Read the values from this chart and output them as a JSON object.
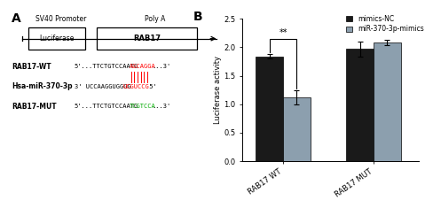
{
  "panel_A": {
    "label": "A",
    "sv40_label": "SV40 Promoter",
    "polya_label": "Poly A",
    "luciferase_label": "Luciferase",
    "rab17_label": "RAB17",
    "rows": [
      {
        "name": "RAB17-WT",
        "prefix": "5'...TTCTGTCCAATG",
        "highlight": "AGCAGGA",
        "suffix": "...3'",
        "highlight_color": "red"
      },
      {
        "name": "Hsa-miR-370-3p",
        "prefix": "3' UCCAAGGUGGGG",
        "highlight": "UCGUCCG",
        "suffix": " 5'",
        "highlight_color": "red"
      },
      {
        "name": "RAB17-MUT",
        "prefix": "5'...TTCTGTCCAATG",
        "highlight": "TCGTCCA",
        "suffix": "...3'",
        "highlight_color": "#00aa00"
      }
    ],
    "n_pipes": 6
  },
  "panel_B": {
    "label": "B",
    "ylabel": "Luciferase activity",
    "groups": [
      "RAB17 WT",
      "RAB17 MUT"
    ],
    "series": [
      "mimics-NC",
      "miR-370-3p-mimics"
    ],
    "series_colors": [
      "#1a1a1a",
      "#8c9fae"
    ],
    "values": [
      [
        1.84,
        1.97
      ],
      [
        1.12,
        2.08
      ]
    ],
    "errors": [
      [
        0.04,
        0.13
      ],
      [
        0.12,
        0.05
      ]
    ],
    "ylim": [
      0.0,
      2.5
    ],
    "yticks": [
      0.0,
      0.5,
      1.0,
      1.5,
      2.0,
      2.5
    ],
    "significance": "**"
  }
}
